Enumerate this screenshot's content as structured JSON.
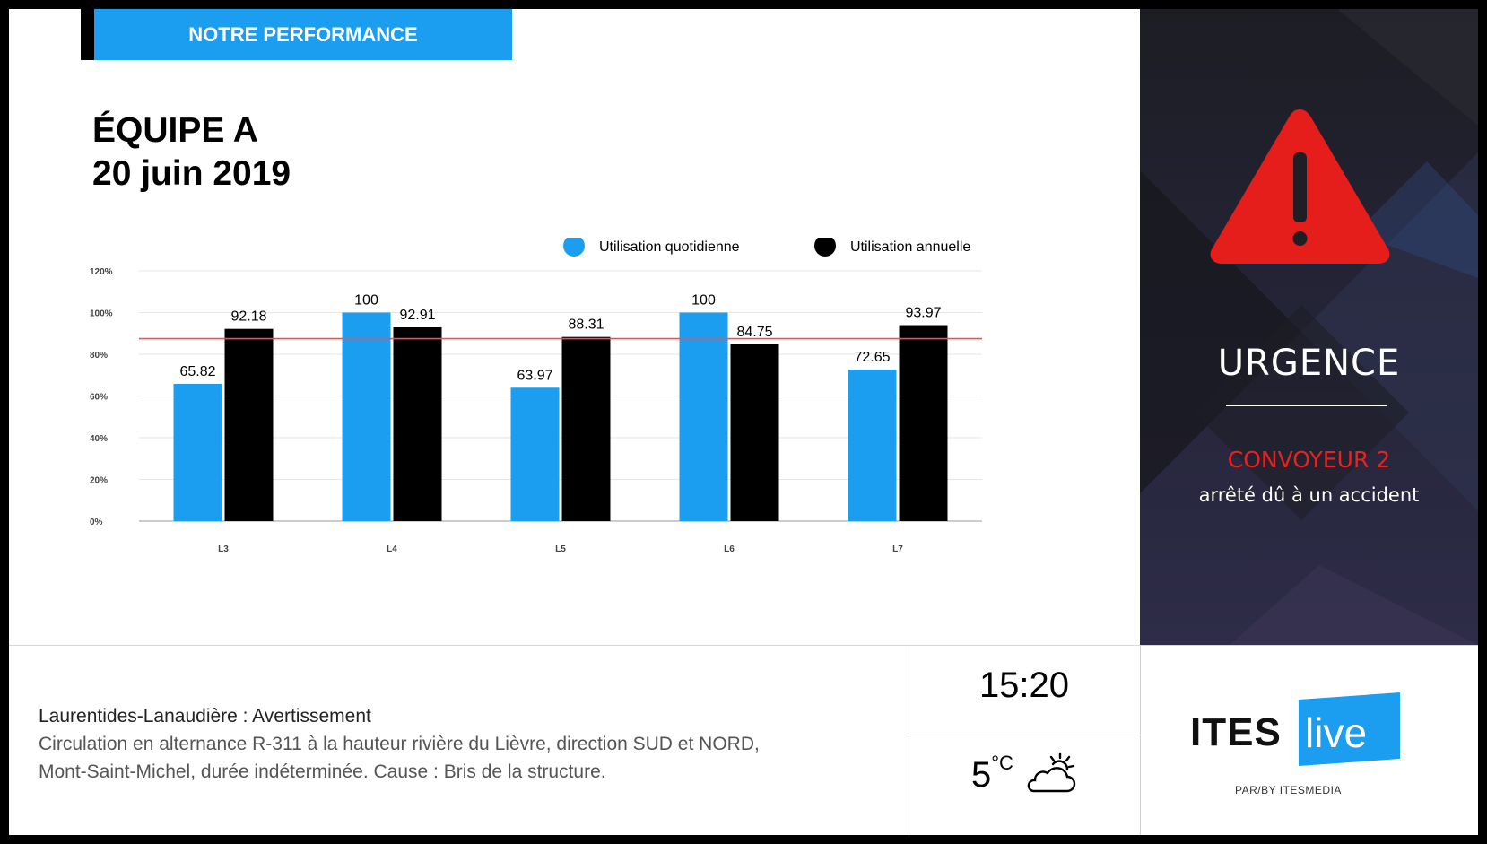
{
  "header": {
    "tab_label": "NOTRE PERFORMANCE"
  },
  "title": {
    "line1": "ÉQUIPE A",
    "line2": "20 juin 2019"
  },
  "chart_data": {
    "type": "bar",
    "categories": [
      "L3",
      "L4",
      "L5",
      "L6",
      "L7"
    ],
    "series": [
      {
        "name": "Utilisation quotidienne",
        "values": [
          65.82,
          100,
          63.97,
          100,
          72.65
        ],
        "color": "#1b9ef0"
      },
      {
        "name": "Utilisation annuelle",
        "values": [
          92.18,
          92.91,
          88.31,
          84.75,
          93.97
        ],
        "color": "#000000"
      }
    ],
    "value_labels": [
      [
        "65.82",
        "100",
        "63.97",
        "100",
        "72.65"
      ],
      [
        "92.18",
        "92.91",
        "88.31",
        "84.75",
        "93.97"
      ]
    ],
    "y_ticks": [
      "0%",
      "20%",
      "40%",
      "60%",
      "80%",
      "100%",
      "120%"
    ],
    "ylim": [
      0,
      120
    ],
    "target_line": {
      "value": 87.5,
      "color": "#e8534f"
    },
    "legend_position": "top-right",
    "grid": true
  },
  "alert": {
    "title": "URGENCE",
    "subtitle": "CONVOYEUR 2",
    "description": "arrêté dû à un accident",
    "icon": "warning-triangle-icon",
    "accent_color": "#e8231f"
  },
  "news": {
    "heading": "Laurentides-Lanaudière : Avertissement",
    "line1": "Circulation en alternance R-311 à la hauteur rivière du Lièvre, direction SUD et NORD,",
    "line2": "Mont-Saint-Michel, durée indéterminée. Cause : Bris de la structure."
  },
  "clock": {
    "time": "15:20"
  },
  "weather": {
    "temp": "5",
    "unit": "°C",
    "icon": "partly-cloudy-icon"
  },
  "logo": {
    "brand": "ITES",
    "product": "live",
    "tagline": "PAR/BY ITESMEDIA"
  }
}
